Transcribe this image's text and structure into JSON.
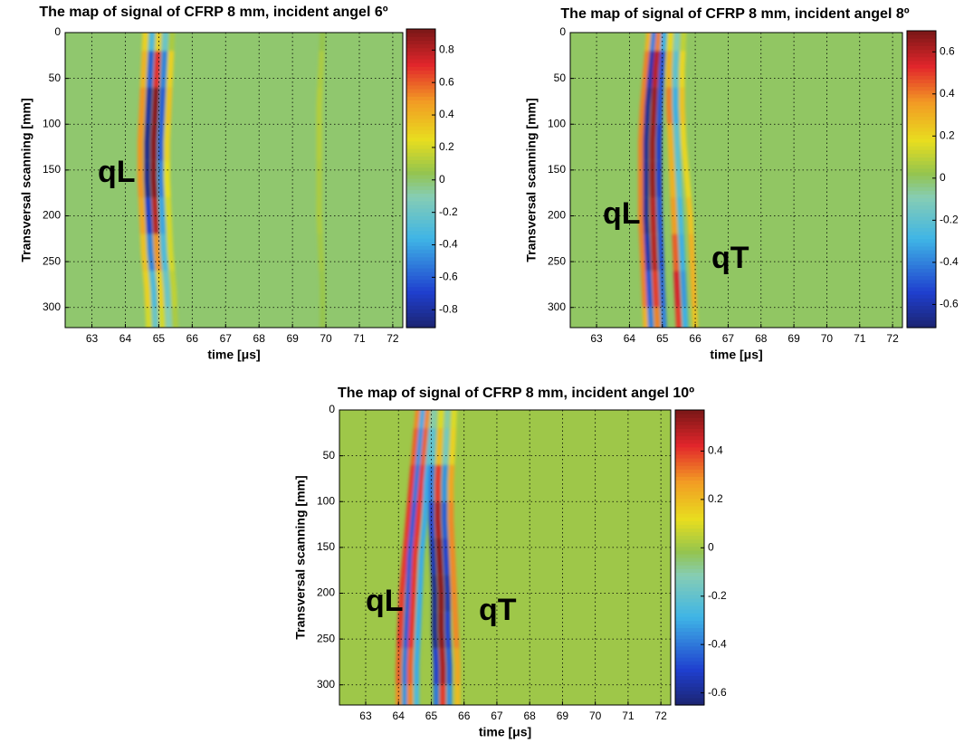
{
  "chart_data": [
    {
      "type": "heatmap",
      "title": "The map of signal of CFRP 8 mm, incident angel 6º",
      "xlabel": "time [μs]",
      "ylabel": "Transversal scanning [mm]",
      "xlim": [
        62.2,
        72.3
      ],
      "xticks": [
        63,
        64,
        65,
        66,
        67,
        68,
        69,
        70,
        71,
        72
      ],
      "ylim": [
        0,
        322
      ],
      "y_reversed": true,
      "yticks": [
        0,
        50,
        100,
        150,
        200,
        250,
        300
      ],
      "grid": true,
      "colormap": "jet",
      "clim": [
        -0.91,
        0.93
      ],
      "cticks": [
        -0.8,
        -0.6,
        -0.4,
        -0.2,
        0,
        0.2,
        0.4,
        0.6,
        0.8
      ],
      "annotations": [
        "qL"
      ],
      "y": [
        0,
        40,
        80,
        120,
        160,
        200,
        240,
        280,
        320
      ],
      "series": [
        {
          "x": [
            64.6,
            64.55,
            64.5,
            64.45,
            64.45,
            64.5,
            64.55,
            64.65,
            64.7
          ],
          "values": [
            0.3,
            0.4,
            0.5,
            0.5,
            0.5,
            0.45,
            0.35,
            0.3,
            0.2
          ]
        },
        {
          "x": [
            64.8,
            64.75,
            64.7,
            64.65,
            64.65,
            64.7,
            64.75,
            64.85,
            64.9
          ],
          "values": [
            -0.3,
            -0.6,
            -0.8,
            -0.85,
            -0.85,
            -0.7,
            -0.5,
            -0.3,
            -0.2
          ]
        },
        {
          "x": [
            65.0,
            64.95,
            64.9,
            64.85,
            64.85,
            64.9,
            64.95,
            65.05,
            65.1
          ],
          "values": [
            0.3,
            0.7,
            0.9,
            0.9,
            0.9,
            0.8,
            0.5,
            0.3,
            0.2
          ]
        },
        {
          "x": [
            65.2,
            65.15,
            65.1,
            65.05,
            65.05,
            65.1,
            65.15,
            65.25,
            65.3
          ],
          "values": [
            -0.2,
            -0.5,
            -0.6,
            -0.6,
            -0.5,
            -0.4,
            -0.3,
            -0.2,
            -0.1
          ]
        },
        {
          "x": [
            65.4,
            65.35,
            65.3,
            65.25,
            65.25,
            65.3,
            65.35,
            65.45,
            65.5
          ],
          "values": [
            0.1,
            0.3,
            0.35,
            0.3,
            0.25,
            0.2,
            0.2,
            0.15,
            0.1
          ]
        },
        {
          "x": [
            69.9,
            69.85,
            69.8,
            69.8,
            69.8,
            69.8,
            69.85,
            69.9,
            69.9
          ],
          "values": [
            0.05,
            0.1,
            0.12,
            0.12,
            0.1,
            0.1,
            0.08,
            0.06,
            0.05
          ]
        }
      ]
    },
    {
      "type": "heatmap",
      "title": "The map of signal of CFRP 8 mm, incident angel 8º",
      "xlabel": "time [μs]",
      "ylabel": "Transversal scanning [mm]",
      "xlim": [
        62.2,
        72.3
      ],
      "xticks": [
        63,
        64,
        65,
        66,
        67,
        68,
        69,
        70,
        71,
        72
      ],
      "ylim": [
        0,
        322
      ],
      "y_reversed": true,
      "yticks": [
        0,
        50,
        100,
        150,
        200,
        250,
        300
      ],
      "grid": true,
      "colormap": "jet",
      "clim": [
        -0.71,
        0.7
      ],
      "cticks": [
        -0.6,
        -0.4,
        -0.2,
        0,
        0.2,
        0.4,
        0.6
      ],
      "annotations": [
        "qL",
        "qT"
      ],
      "y": [
        0,
        40,
        80,
        120,
        160,
        200,
        240,
        280,
        320
      ],
      "series": [
        {
          "x": [
            64.6,
            64.5,
            64.4,
            64.35,
            64.35,
            64.35,
            64.4,
            64.45,
            64.5
          ],
          "values": [
            0.3,
            0.4,
            0.4,
            0.4,
            0.4,
            0.4,
            0.4,
            0.4,
            0.3
          ]
        },
        {
          "x": [
            64.75,
            64.65,
            64.55,
            64.5,
            64.5,
            64.5,
            64.55,
            64.6,
            64.65
          ],
          "values": [
            -0.4,
            -0.6,
            -0.65,
            -0.65,
            -0.65,
            -0.65,
            -0.6,
            -0.5,
            -0.4
          ]
        },
        {
          "x": [
            64.9,
            64.8,
            64.75,
            64.7,
            64.7,
            64.72,
            64.75,
            64.8,
            64.85
          ],
          "values": [
            0.4,
            0.6,
            0.65,
            0.65,
            0.65,
            0.6,
            0.6,
            0.5,
            0.4
          ]
        },
        {
          "x": [
            65.05,
            64.98,
            64.93,
            64.9,
            64.9,
            64.92,
            64.96,
            65.0,
            65.05
          ],
          "values": [
            -0.3,
            -0.5,
            -0.5,
            -0.55,
            -0.55,
            -0.5,
            -0.5,
            -0.45,
            -0.4
          ]
        },
        {
          "x": [
            65.25,
            65.2,
            65.2,
            65.25,
            65.3,
            65.35,
            65.4,
            65.45,
            65.5
          ],
          "values": [
            0.2,
            0.3,
            0.4,
            0.3,
            0.3,
            0.35,
            0.45,
            0.55,
            0.5
          ]
        },
        {
          "x": [
            65.45,
            65.4,
            65.4,
            65.45,
            65.5,
            65.55,
            65.6,
            65.65,
            65.7
          ],
          "values": [
            -0.1,
            -0.2,
            -0.3,
            -0.2,
            -0.2,
            -0.25,
            -0.3,
            -0.35,
            -0.3
          ]
        },
        {
          "x": [
            65.65,
            65.6,
            65.6,
            65.65,
            65.75,
            65.85,
            65.9,
            65.95,
            66.0
          ],
          "values": [
            0.1,
            0.2,
            0.25,
            0.2,
            0.2,
            0.25,
            0.3,
            0.3,
            0.25
          ]
        }
      ]
    },
    {
      "type": "heatmap",
      "title": "The map of signal of CFRP 8 mm, incident angel 10º",
      "xlabel": "time [μs]",
      "ylabel": "Transversal scanning [mm]",
      "xlim": [
        62.2,
        72.3
      ],
      "xticks": [
        63,
        64,
        65,
        66,
        67,
        68,
        69,
        70,
        71,
        72
      ],
      "ylim": [
        0,
        322
      ],
      "y_reversed": true,
      "yticks": [
        0,
        50,
        100,
        150,
        200,
        250,
        300
      ],
      "grid": true,
      "colormap": "jet",
      "clim": [
        -0.65,
        0.57
      ],
      "cticks": [
        -0.6,
        -0.4,
        -0.2,
        0,
        0.2,
        0.4
      ],
      "annotations": [
        "qL",
        "qT"
      ],
      "y": [
        0,
        40,
        80,
        120,
        160,
        200,
        240,
        280,
        320
      ],
      "series": [
        {
          "x": [
            64.6,
            64.5,
            64.4,
            64.3,
            64.2,
            64.1,
            64.05,
            64.0,
            64.0
          ],
          "values": [
            0.3,
            0.35,
            0.4,
            0.4,
            0.4,
            0.4,
            0.4,
            0.35,
            0.3
          ]
        },
        {
          "x": [
            64.75,
            64.65,
            64.55,
            64.45,
            64.35,
            64.3,
            64.25,
            64.2,
            64.2
          ],
          "values": [
            -0.3,
            -0.35,
            -0.4,
            -0.45,
            -0.45,
            -0.45,
            -0.45,
            -0.4,
            -0.35
          ]
        },
        {
          "x": [
            64.9,
            64.8,
            64.7,
            64.6,
            64.5,
            64.45,
            64.4,
            64.35,
            64.35
          ],
          "values": [
            0.3,
            0.35,
            0.4,
            0.4,
            0.4,
            0.4,
            0.4,
            0.35,
            0.3
          ]
        },
        {
          "x": [
            65.05,
            64.95,
            64.85,
            64.8,
            64.7,
            64.65,
            64.6,
            64.55,
            64.55
          ],
          "values": [
            -0.1,
            -0.2,
            -0.3,
            -0.3,
            -0.3,
            -0.3,
            -0.3,
            -0.3,
            -0.25
          ]
        },
        {
          "x": [
            65.1,
            65.05,
            65.0,
            65.0,
            65.05,
            65.1,
            65.1,
            65.15,
            65.15
          ],
          "values": [
            -0.1,
            -0.2,
            -0.4,
            -0.5,
            -0.55,
            -0.6,
            -0.6,
            -0.5,
            -0.4
          ]
        },
        {
          "x": [
            65.3,
            65.25,
            65.2,
            65.2,
            65.25,
            65.3,
            65.3,
            65.35,
            65.35
          ],
          "values": [
            0.1,
            0.2,
            0.4,
            0.5,
            0.55,
            0.55,
            0.55,
            0.5,
            0.4
          ]
        },
        {
          "x": [
            65.5,
            65.45,
            65.4,
            65.4,
            65.45,
            65.5,
            65.5,
            65.55,
            65.55
          ],
          "values": [
            -0.1,
            -0.15,
            -0.35,
            -0.45,
            -0.5,
            -0.55,
            -0.5,
            -0.45,
            -0.35
          ]
        },
        {
          "x": [
            65.7,
            65.65,
            65.6,
            65.6,
            65.65,
            65.7,
            65.75,
            65.8,
            65.8
          ],
          "values": [
            0.1,
            0.15,
            0.25,
            0.3,
            0.3,
            0.3,
            0.3,
            0.25,
            0.2
          ]
        }
      ]
    }
  ]
}
